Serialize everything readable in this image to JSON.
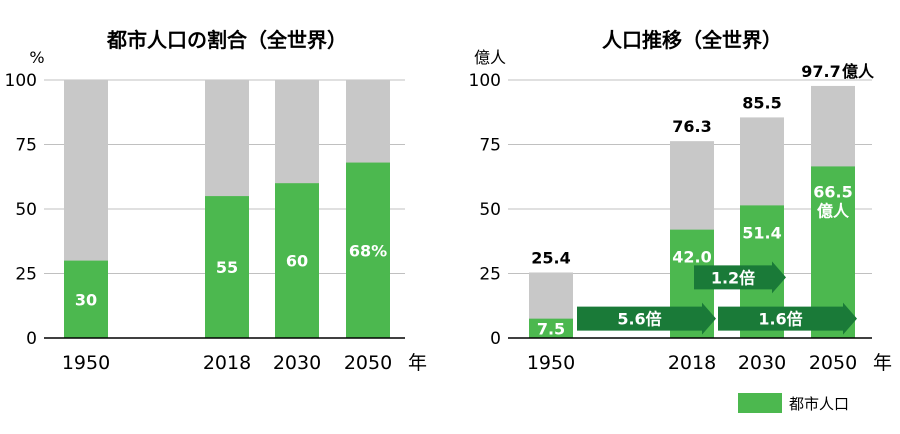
{
  "colors": {
    "urban": "#4cb84f",
    "total": "#c8c8c8",
    "arrow": "#1a7a38",
    "grid": "#c0c0c0",
    "axis": "#000000"
  },
  "legend": {
    "label": "都市人口"
  },
  "chart_data": [
    {
      "type": "bar",
      "stacked": true,
      "title": "都市人口の割合（全世界）",
      "yunit": "%",
      "xunit": "年",
      "ylim": [
        0,
        100
      ],
      "yticks": [
        0,
        25,
        50,
        75,
        100
      ],
      "categories": [
        "1950",
        "2018",
        "2030",
        "2050"
      ],
      "urban": [
        30,
        55,
        60,
        68
      ],
      "total": [
        100,
        100,
        100,
        100
      ],
      "urban_labels": [
        "30",
        "55",
        "60",
        "68%"
      ],
      "grid": true
    },
    {
      "type": "bar",
      "stacked": true,
      "title": "人口推移（全世界）",
      "yunit": "億人",
      "xunit": "年",
      "ylim": [
        0,
        100
      ],
      "yticks": [
        0,
        25,
        50,
        75,
        100
      ],
      "categories": [
        "1950",
        "2018",
        "2030",
        "2050"
      ],
      "urban": [
        7.5,
        42.0,
        51.4,
        66.5
      ],
      "total": [
        25.4,
        76.3,
        85.5,
        97.7
      ],
      "urban_labels": [
        "7.5",
        "42.0",
        "51.4",
        "66.5"
      ],
      "urban_unit_labels": [
        "",
        "",
        "",
        "億人"
      ],
      "total_labels": [
        "25.4",
        "76.3",
        "85.5",
        "97.7"
      ],
      "total_unit_labels": [
        "",
        "",
        "",
        "億人"
      ],
      "grid": true,
      "annotations": [
        {
          "label": "5.6倍",
          "from": "1950",
          "to": "2018",
          "y": 7.5
        },
        {
          "label": "1.6倍",
          "from": "2018",
          "to": "2050",
          "y": 7.5
        },
        {
          "label": "1.2倍",
          "from": "2018",
          "to": "2030",
          "y": 23.5
        }
      ]
    }
  ]
}
